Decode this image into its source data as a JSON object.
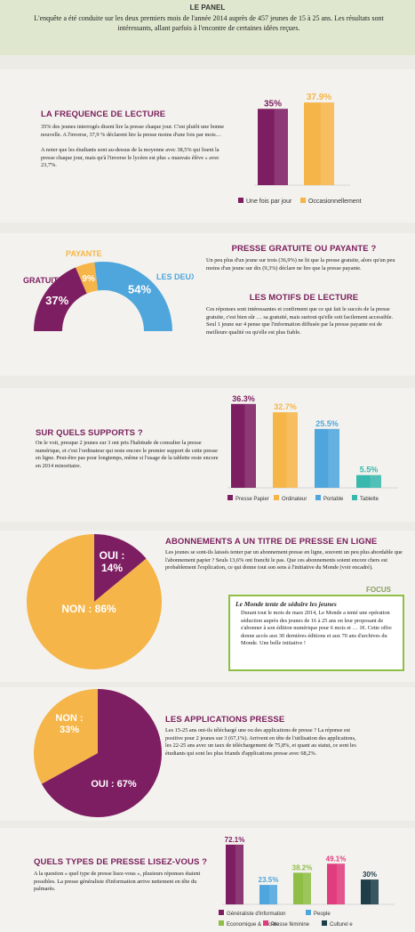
{
  "colors": {
    "purple": "#7e1e62",
    "orange": "#f5b548",
    "blue": "#4fa6dc",
    "teal": "#39b9ae",
    "pink": "#e03d7f",
    "dark": "#1e3e4a",
    "green": "#8fbe45",
    "title": "#7a1f5c"
  },
  "panel": {
    "title": "LE PANEL",
    "text": "L'enquête a été conduite sur les deux premiers mois de l'année 2014 auprès de 457 jeunes de 15 à 25 ans. Les résultats sont intéressants, allant parfois à l'encontre de certaines idées reçues."
  },
  "frequence": {
    "title": "LA FREQUENCE DE LECTURE",
    "p1": "35% des jeunes interrogés disent lire la presse chaque jour. C'est plutôt une bonne nouvelle. A l'inverse, 37,9 % déclarent lire la presse moins d'une fois par mois…",
    "p2": "A noter que les étudiants sont au-dessus de la moyenne avec 38,5% qui lisent la presse chaque jour, mais qu'à l'inverse le lycéen est plus « mauvais élève » avec 23,7%."
  },
  "gratuite": {
    "title": "PRESSE GRATUITE OU PAYANTE ?",
    "text": "Un peu plus d'un jeune sur trois (36,9%) ne lit que la presse gratuite, alors qu'un peu moins d'un jeune sur dix (9,3%) déclare ne lire que la presse payante."
  },
  "motifs": {
    "title": "LES MOTIFS DE LECTURE",
    "text": "Ces réponses sont intéressantes et confirment que ce qui fait le succès de la presse gratuite, c'est bien sûr … sa gratuité, mais surtout qu'elle soit facilement accessible. Seul 1 jeune sur 4 pense que l'information diffusée par la presse payante est de meilleure qualité ou qu'elle est plus fiable."
  },
  "supports": {
    "title": "SUR QUELS SUPPORTS ?",
    "text": "On le voit, presque 2 jeunes sur 3 ont pris l'habitude de consulter la presse numérique, et c'est l'ordinateur qui reste encore le premier support de cette presse en ligne. Peut-être pas pour longtemps, même si l'usage de la tablette reste encore en 2014 minoritaire."
  },
  "abonnements": {
    "title": "ABONNEMENTS A UN TITRE DE PRESSE EN LIGNE",
    "text": "Les jeunes se sont-ils laissés tenter par un abonnement presse en ligne, souvent un peu plus abordable que l'abonnement papier ? Seuls 13,6% ont franchi le pas. Que ces abonnements soient encore chers est probablement l'explication, ce qui donne tout son sens à l'initiative du Monde (voir encadré)."
  },
  "focus": {
    "label": "FOCUS",
    "title": "Le Monde tente de séduire les jeunes",
    "text": "Durant tout le mois de mars 2014, Le Monde a tenté une opération séduction auprès des jeunes de 16 à 25 ans en leur proposant de s'abonner à son édition numérique pour 6 mois et … 1€. Cette offre donne accès aux 30 dernières éditions et aux 70 ans d'archives du Monde. Une belle initiative !"
  },
  "applications": {
    "title": "LES APPLICATIONS PRESSE",
    "text": "Les 15-25 ans ont-ils téléchargé une ou des applications de presse ? La réponse est positive pour 2 jeunes sur 3 (67,1%). Arrivent en tête de l'utilisation des applications, les 22-25 ans avec un taux de téléchargement de 75,8%, et quant au statut, ce sont les étudiants qui sont les plus friands d'applications presse avec 68,2%."
  },
  "types": {
    "title": "QUELS TYPES DE PRESSE LISEZ-VOUS ?",
    "text": "A la question « quel type de presse lisez-vous », plusieurs réponses étaient possibles. La presse généraliste d'information arrive nettement en tête du palmarès."
  },
  "chart_data": [
    {
      "type": "bar",
      "categories": [
        "Une fois par jour",
        "Occasionnellement"
      ],
      "values": [
        35,
        37.9
      ],
      "labels": [
        "35%",
        "37.9%"
      ],
      "colors": [
        "#7e1e62",
        "#f5b548"
      ],
      "legend": "bottom"
    },
    {
      "type": "pie",
      "style": "half-donut",
      "categories": [
        "GRATUITE",
        "PAYANTE",
        "LES DEUX"
      ],
      "values": [
        37,
        9,
        54
      ],
      "labels": [
        "37%",
        "9%",
        "54%"
      ],
      "colors": [
        "#7e1e62",
        "#f5b548",
        "#4fa6dc"
      ]
    },
    {
      "type": "bar",
      "categories": [
        "Presse Papier",
        "Ordinateur",
        "Portable",
        "Tablette"
      ],
      "values": [
        36.3,
        32.7,
        25.5,
        5.5
      ],
      "labels": [
        "36.3%",
        "32.7%",
        "25.5%",
        "5.5%"
      ],
      "colors": [
        "#7e1e62",
        "#f5b548",
        "#4fa6dc",
        "#39b9ae"
      ],
      "legend": "bottom"
    },
    {
      "type": "pie",
      "categories": [
        "OUI",
        "NON"
      ],
      "values": [
        14,
        86
      ],
      "labels": [
        "OUI : 14%",
        "NON : 86%"
      ],
      "colors": [
        "#7e1e62",
        "#f5b548"
      ]
    },
    {
      "type": "pie",
      "categories": [
        "OUI",
        "NON"
      ],
      "values": [
        67,
        33
      ],
      "labels": [
        "OUI : 67%",
        "NON : 33%"
      ],
      "colors": [
        "#7e1e62",
        "#f5b548"
      ]
    },
    {
      "type": "bar",
      "categories": [
        "Généraliste d'information",
        "People",
        "Economique & sociale",
        "Presse féminine",
        "Culturel e"
      ],
      "values": [
        72.1,
        23.5,
        38.2,
        49.1,
        30
      ],
      "labels": [
        "72.1%",
        "23.5%",
        "38.2%",
        "49.1%",
        "30%"
      ],
      "colors": [
        "#7e1e62",
        "#4fa6dc",
        "#8fbe45",
        "#e03d7f",
        "#1e3e4a"
      ],
      "legend": "bottom"
    }
  ]
}
